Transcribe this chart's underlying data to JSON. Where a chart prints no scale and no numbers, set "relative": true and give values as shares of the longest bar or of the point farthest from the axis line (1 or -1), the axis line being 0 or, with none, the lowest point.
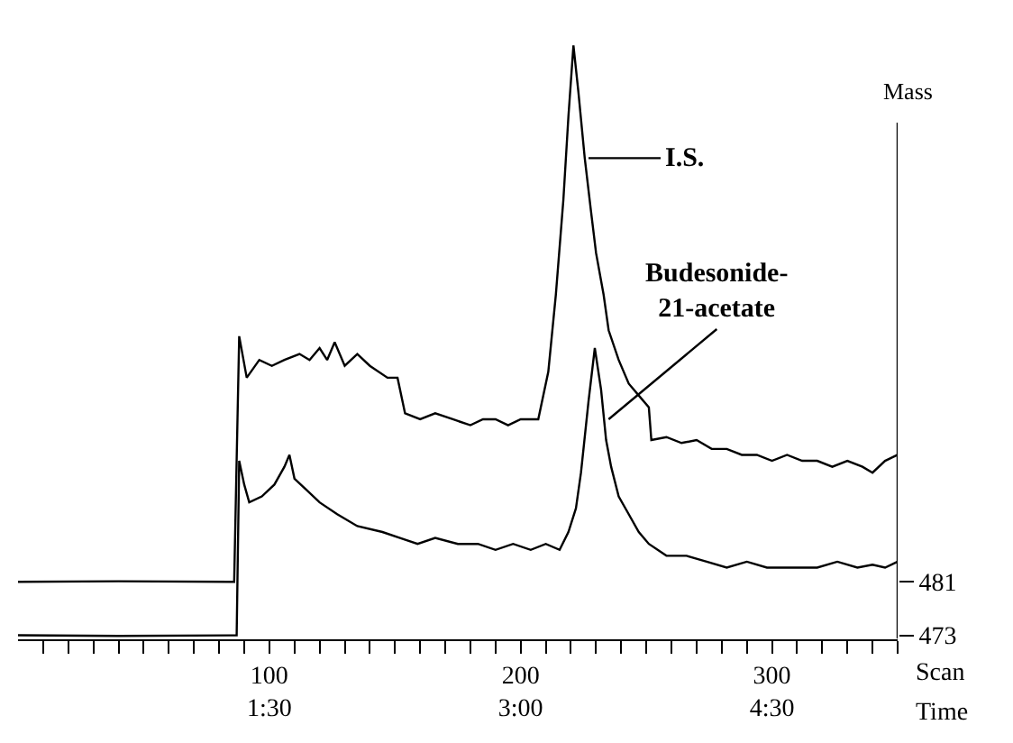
{
  "chart_data": {
    "type": "line",
    "relative": true,
    "ylabel": "Mass",
    "xlabel": "Scan",
    "x2label": "Time",
    "x2lim": [
      0,
      5.25
    ],
    "x2ticks": [
      {
        "value": 1.5,
        "label": "1:30"
      },
      {
        "value": 3,
        "label": "3:00"
      },
      {
        "value": 4.5,
        "label": "4:30"
      }
    ],
    "xlim": [
      0,
      350
    ],
    "xticks": [
      {
        "value": 10,
        "label": null
      },
      {
        "value": 20,
        "label": null
      },
      {
        "value": 30,
        "label": null
      },
      {
        "value": 40,
        "label": null
      },
      {
        "value": 50,
        "label": null
      },
      {
        "value": 60,
        "label": null
      },
      {
        "value": 70,
        "label": null
      },
      {
        "value": 80,
        "label": null
      },
      {
        "value": 90,
        "label": null
      },
      100,
      {
        "value": 110,
        "label": null
      },
      {
        "value": 120,
        "label": null
      },
      {
        "value": 130,
        "label": null
      },
      {
        "value": 140,
        "label": null
      },
      {
        "value": 150,
        "label": null
      },
      {
        "value": 160,
        "label": null
      },
      {
        "value": 170,
        "label": null
      },
      {
        "value": 180,
        "label": null
      },
      {
        "value": 190,
        "label": null
      },
      200,
      {
        "value": 210,
        "label": null
      },
      {
        "value": 220,
        "label": null
      },
      {
        "value": 230,
        "label": null
      },
      {
        "value": 240,
        "label": null
      },
      {
        "value": 250,
        "label": null
      },
      {
        "value": 260,
        "label": null
      },
      {
        "value": 270,
        "label": null
      },
      {
        "value": 280,
        "label": null
      },
      {
        "value": 290,
        "label": null
      },
      300,
      {
        "value": 310,
        "label": null
      },
      {
        "value": 320,
        "label": null
      },
      {
        "value": 330,
        "label": null
      },
      {
        "value": 340,
        "label": null
      },
      {
        "value": 350,
        "label": null
      }
    ],
    "legend": "bottom right",
    "marker": "none",
    "line_style": "solid",
    "annotations": [
      {
        "text": "I.S.",
        "x": 227,
        "y": 0.81
      },
      {
        "text": "Budesonide-\n21-acetate",
        "x": 235,
        "y": 0.37
      }
    ],
    "series": [
      {
        "name": "481",
        "color": "#000000",
        "x": [
          0,
          40,
          86,
          88,
          91,
          96,
          101,
          106,
          112,
          116,
          120,
          123,
          126,
          130,
          135,
          140,
          147,
          151,
          154,
          160,
          166,
          173,
          180,
          185,
          190,
          195,
          200,
          207,
          211,
          214,
          217,
          219,
          221,
          223,
          225.5,
          228,
          230,
          233,
          235,
          239,
          243,
          247,
          251,
          252,
          258,
          264,
          270,
          276,
          282,
          288,
          294,
          300,
          306,
          312,
          318,
          324,
          330,
          336,
          340,
          345,
          350
        ],
        "values": [
          0.096,
          0.097,
          0.096,
          0.51,
          0.44,
          0.47,
          0.46,
          0.47,
          0.48,
          0.47,
          0.49,
          0.47,
          0.5,
          0.46,
          0.48,
          0.46,
          0.44,
          0.44,
          0.38,
          0.37,
          0.38,
          0.37,
          0.36,
          0.37,
          0.37,
          0.36,
          0.37,
          0.37,
          0.45,
          0.58,
          0.74,
          0.88,
          1.0,
          0.92,
          0.81,
          0.72,
          0.65,
          0.58,
          0.52,
          0.47,
          0.43,
          0.41,
          0.39,
          0.335,
          0.34,
          0.33,
          0.335,
          0.32,
          0.32,
          0.31,
          0.31,
          0.3,
          0.31,
          0.3,
          0.3,
          0.29,
          0.3,
          0.29,
          0.28,
          0.3,
          0.31
        ]
      },
      {
        "name": "473",
        "color": "#000000",
        "x": [
          0,
          40,
          87,
          88,
          90,
          92,
          97,
          102,
          106,
          108,
          110,
          115,
          120,
          127,
          135,
          145,
          152,
          159,
          166,
          175,
          183,
          190,
          197,
          204,
          210,
          215.5,
          219,
          222,
          224,
          227,
          229.5,
          232,
          234,
          236,
          239,
          243,
          247,
          251,
          258,
          266,
          274,
          282,
          290,
          298,
          306,
          311,
          318,
          326,
          334,
          340,
          345,
          350
        ],
        "values": [
          0.006,
          0.005,
          0.006,
          0.3,
          0.26,
          0.23,
          0.24,
          0.26,
          0.29,
          0.31,
          0.27,
          0.25,
          0.23,
          0.21,
          0.19,
          0.18,
          0.17,
          0.16,
          0.17,
          0.16,
          0.16,
          0.15,
          0.16,
          0.15,
          0.16,
          0.15,
          0.18,
          0.22,
          0.28,
          0.4,
          0.49,
          0.42,
          0.335,
          0.29,
          0.24,
          0.21,
          0.18,
          0.16,
          0.14,
          0.14,
          0.13,
          0.12,
          0.13,
          0.12,
          0.12,
          0.12,
          0.12,
          0.13,
          0.12,
          0.125,
          0.12,
          0.13
        ]
      }
    ]
  }
}
